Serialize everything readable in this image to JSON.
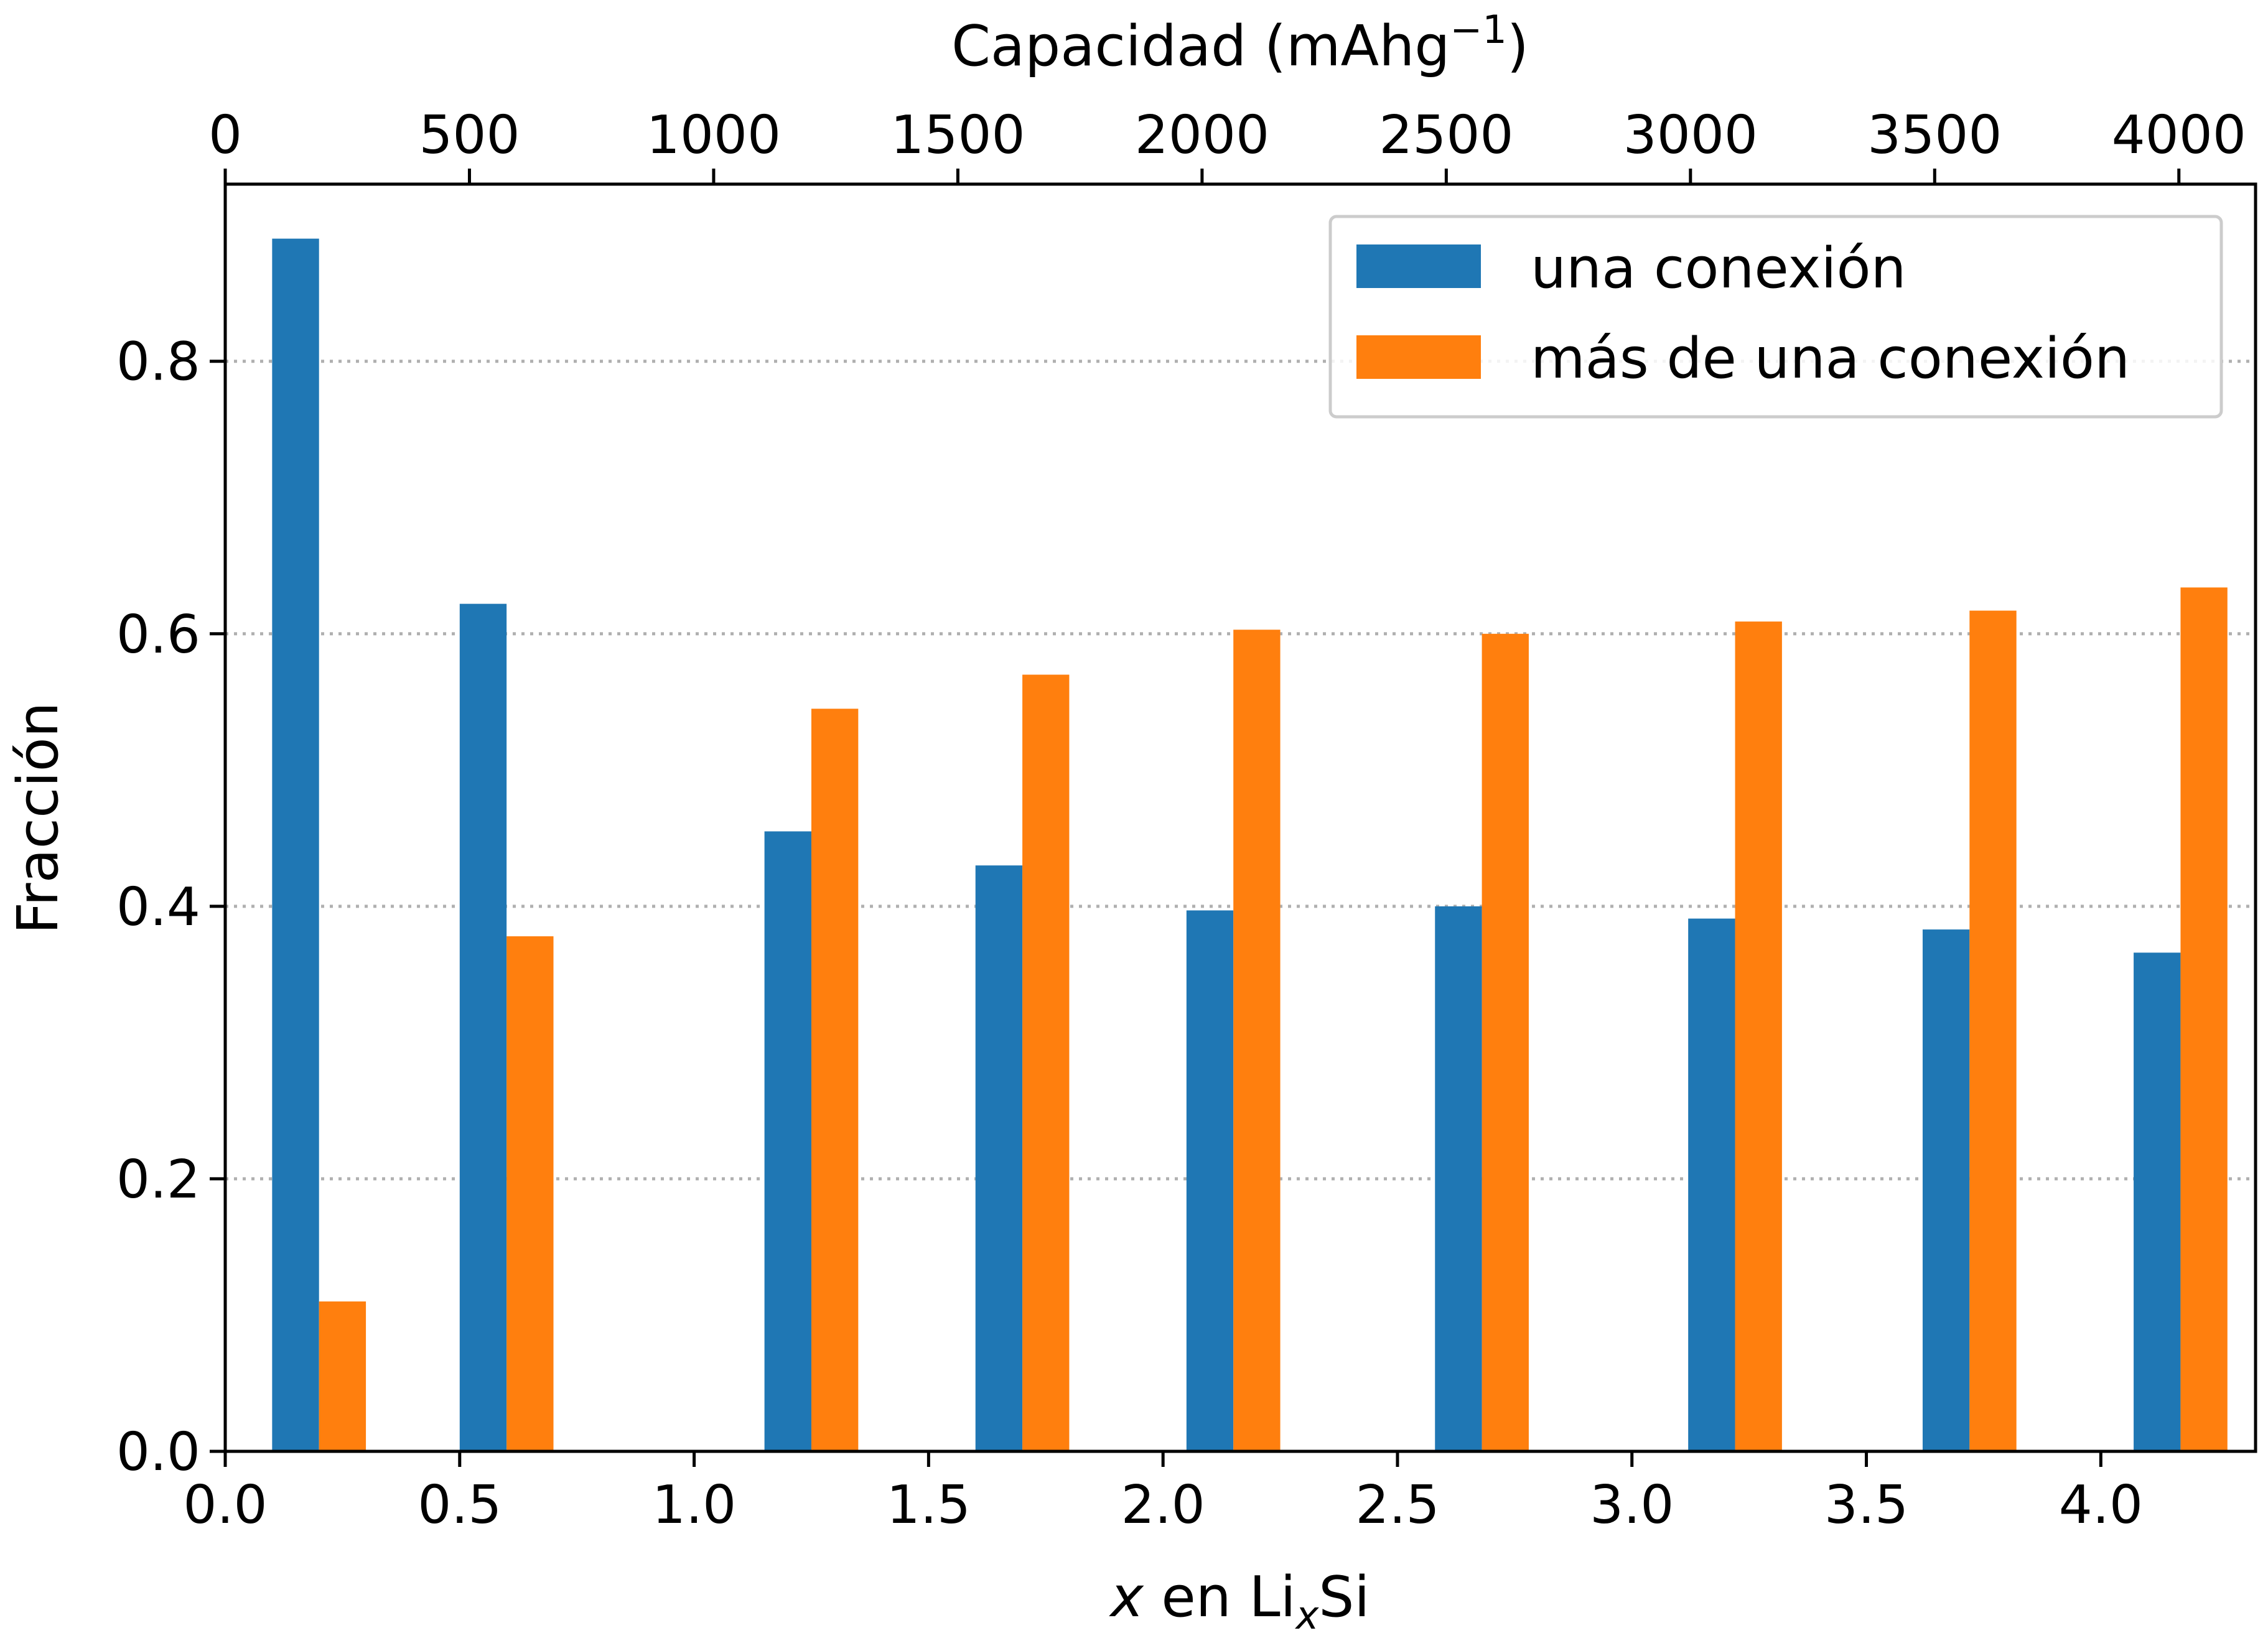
{
  "chart_data": {
    "type": "bar",
    "xlabel_parts": {
      "var": "x",
      "mid": " en Li",
      "sub": "x",
      "tail": "Si"
    },
    "ylabel": "Fracción",
    "top_xlabel": {
      "base": "Capacidad (mAhg",
      "sup": "−1",
      "tail": ")"
    },
    "xlim": [
      0.0,
      4.33
    ],
    "ylim": [
      0.0,
      0.93
    ],
    "top_xlim": [
      0,
      4157
    ],
    "x_ticks": [
      "0.0",
      "0.5",
      "1.0",
      "1.5",
      "2.0",
      "2.5",
      "3.0",
      "3.5",
      "4.0"
    ],
    "y_ticks": [
      "0.0",
      "0.2",
      "0.4",
      "0.6",
      "0.8"
    ],
    "top_ticks": [
      "0",
      "500",
      "1000",
      "1500",
      "2000",
      "2500",
      "3000",
      "3500",
      "4000"
    ],
    "grid": {
      "y": true,
      "x": false,
      "style": "dotted"
    },
    "legend_position": "upper-right",
    "bar_width": 0.1,
    "x": [
      0.2,
      0.6,
      1.25,
      1.7,
      2.15,
      2.68,
      3.22,
      3.72,
      4.17
    ],
    "series": [
      {
        "name": "una conexión",
        "color": "#1f77b4",
        "offset": -0.05,
        "values": [
          0.89,
          0.622,
          0.455,
          0.43,
          0.397,
          0.4,
          0.391,
          0.383,
          0.366
        ]
      },
      {
        "name": "más de una conexión",
        "color": "#ff7f0e",
        "offset": 0.05,
        "values": [
          0.11,
          0.378,
          0.545,
          0.57,
          0.603,
          0.6,
          0.609,
          0.617,
          0.634
        ]
      }
    ]
  }
}
